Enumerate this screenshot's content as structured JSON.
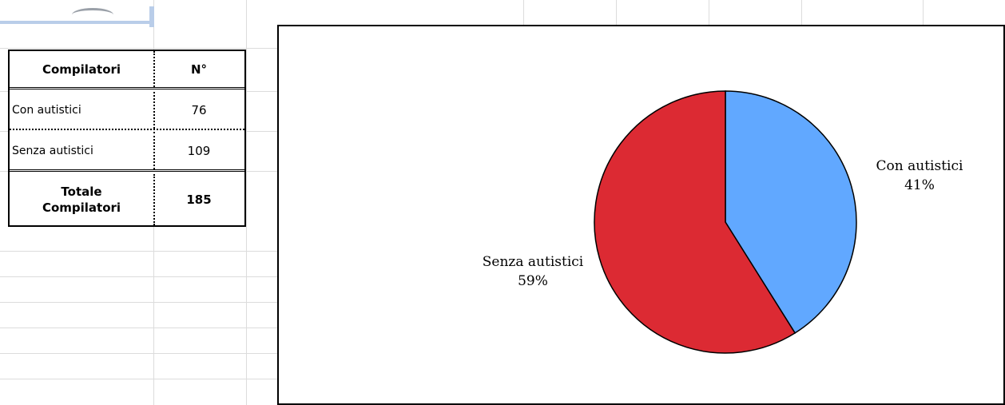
{
  "table": {
    "headers": [
      "Compilatori",
      "N°"
    ],
    "rows": [
      {
        "label": "Con autistici",
        "value": "76"
      },
      {
        "label": "Senza autistici",
        "value": "109"
      }
    ],
    "total": {
      "label_line1": "Totale",
      "label_line2": "Compilatori",
      "value": "185"
    }
  },
  "chart_data": {
    "type": "pie",
    "title": "",
    "slices": [
      {
        "name": "Con autistici",
        "value": 76,
        "percent_label": "41%",
        "color": "#61a8ff"
      },
      {
        "name": "Senza autistici",
        "value": 109,
        "percent_label": "59%",
        "color": "#dc2a33"
      }
    ],
    "start_angle_deg": 0,
    "direction": "clockwise",
    "legend": "none"
  }
}
